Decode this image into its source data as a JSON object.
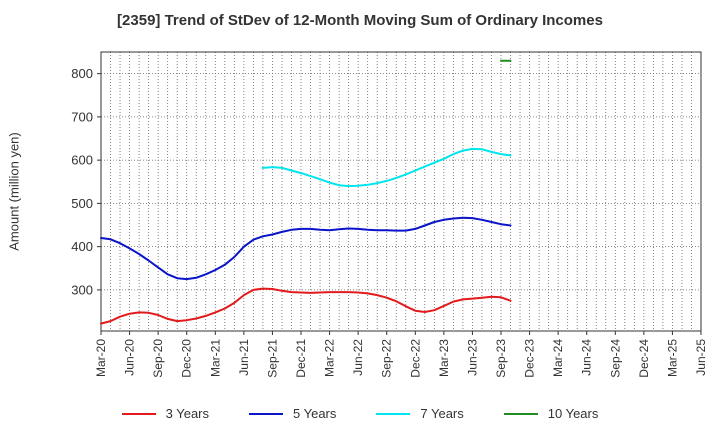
{
  "chart_data": {
    "type": "line",
    "title": "[2359]  Trend of StDev of 12-Month Moving Sum of Ordinary Incomes",
    "xlabel": "",
    "ylabel": "Amount (million yen)",
    "ylim": [
      205,
      850
    ],
    "yticks": [
      300,
      400,
      500,
      600,
      700,
      800
    ],
    "x_tick_labels": [
      "Mar-20",
      "Jun-20",
      "Sep-20",
      "Dec-20",
      "Mar-21",
      "Jun-21",
      "Sep-21",
      "Dec-21",
      "Mar-22",
      "Jun-22",
      "Sep-22",
      "Dec-22",
      "Mar-23",
      "Jun-23",
      "Sep-23",
      "Dec-23",
      "Mar-24",
      "Jun-24",
      "Sep-24",
      "Dec-24",
      "Mar-25",
      "Jun-25"
    ],
    "grid": true,
    "legend_position": "bottom",
    "series": [
      {
        "name": "3 Years",
        "color": "#e31a1c",
        "values": [
          222,
          228,
          238,
          245,
          248,
          247,
          242,
          233,
          228,
          230,
          234,
          240,
          248,
          257,
          270,
          288,
          300,
          303,
          302,
          298,
          295,
          294,
          293,
          294,
          295,
          295,
          295,
          294,
          292,
          288,
          282,
          274,
          262,
          252,
          249,
          253,
          263,
          273,
          278,
          280,
          282,
          284,
          283,
          275
        ]
      },
      {
        "name": "5 Years",
        "color": "#0a14c8",
        "values": [
          420,
          417,
          408,
          396,
          383,
          368,
          352,
          336,
          327,
          325,
          328,
          336,
          346,
          358,
          376,
          400,
          416,
          424,
          428,
          434,
          439,
          441,
          441,
          439,
          438,
          440,
          442,
          441,
          439,
          438,
          438,
          437,
          437,
          441,
          449,
          457,
          462,
          465,
          467,
          466,
          462,
          457,
          452,
          449
        ]
      },
      {
        "name": "7 Years",
        "color": "#00e5ee",
        "values": [
          null,
          null,
          null,
          null,
          null,
          null,
          null,
          null,
          null,
          null,
          null,
          null,
          null,
          null,
          null,
          null,
          null,
          582,
          584,
          582,
          576,
          570,
          563,
          556,
          548,
          542,
          540,
          541,
          543,
          547,
          552,
          559,
          567,
          576,
          585,
          594,
          603,
          614,
          622,
          626,
          625,
          619,
          614,
          611
        ]
      },
      {
        "name": "10 Years",
        "color": "#228b22",
        "values": [
          null,
          null,
          null,
          null,
          null,
          null,
          null,
          null,
          null,
          null,
          null,
          null,
          null,
          null,
          null,
          null,
          null,
          null,
          null,
          null,
          null,
          null,
          null,
          null,
          null,
          null,
          null,
          null,
          null,
          null,
          null,
          null,
          null,
          null,
          null,
          null,
          null,
          null,
          null,
          null,
          null,
          null,
          830,
          830
        ]
      }
    ]
  }
}
